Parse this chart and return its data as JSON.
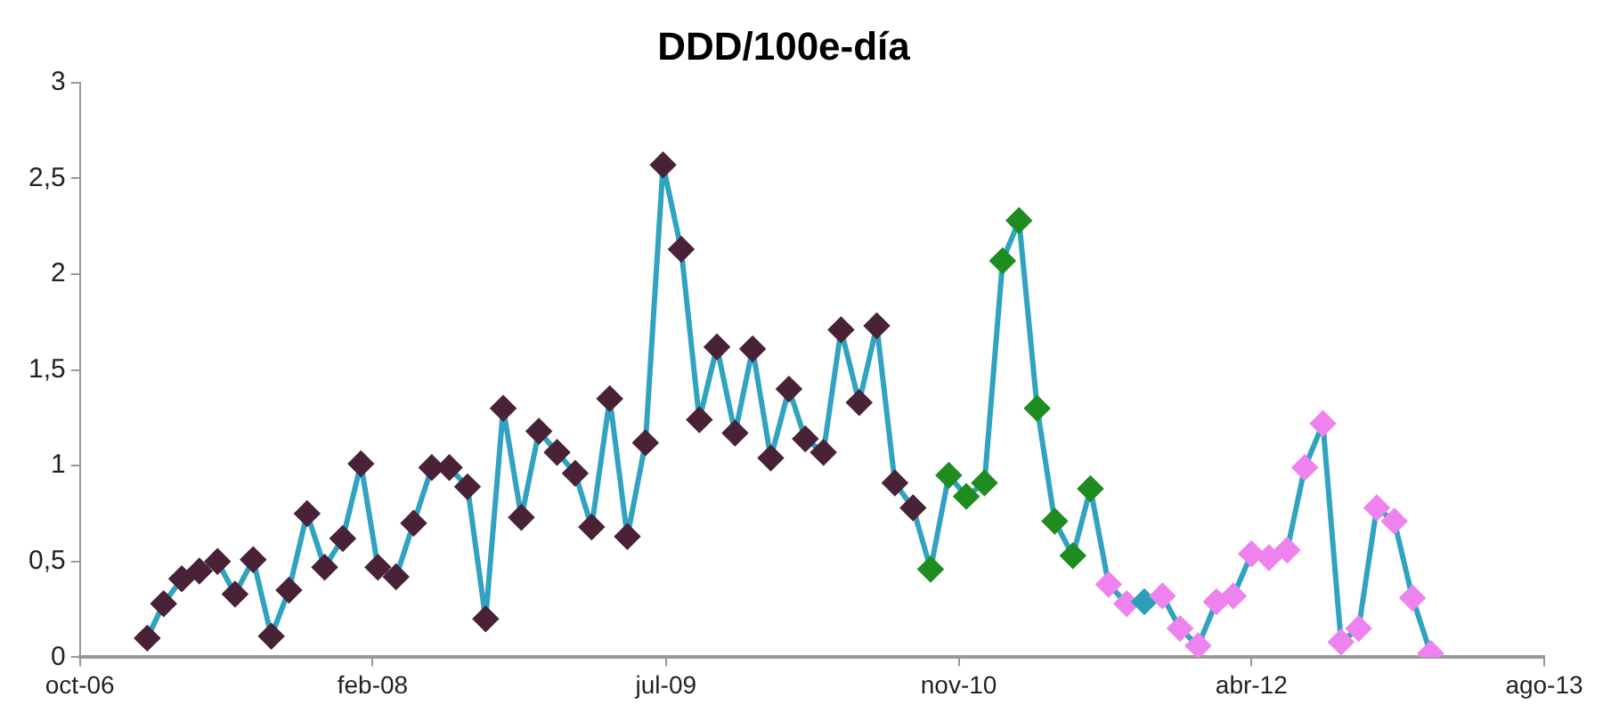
{
  "chart_data": {
    "type": "line",
    "title": "DDD/100e-día",
    "x": [
      "2007-02",
      "2007-03",
      "2007-04",
      "2007-05",
      "2007-06",
      "2007-07",
      "2007-08",
      "2007-09",
      "2007-10",
      "2007-11",
      "2007-12",
      "2008-01",
      "2008-02",
      "2008-03",
      "2008-04",
      "2008-05",
      "2008-06",
      "2008-07",
      "2008-08",
      "2008-09",
      "2008-10",
      "2008-11",
      "2008-12",
      "2009-01",
      "2009-02",
      "2009-03",
      "2009-04",
      "2009-05",
      "2009-06",
      "2009-07",
      "2009-08",
      "2009-09",
      "2009-10",
      "2009-11",
      "2009-12",
      "2010-01",
      "2010-02",
      "2010-03",
      "2010-04",
      "2010-05",
      "2010-06",
      "2010-07",
      "2010-08",
      "2010-09",
      "2010-10",
      "2010-11",
      "2010-12",
      "2011-01",
      "2011-02",
      "2011-03",
      "2011-04",
      "2011-05",
      "2011-06",
      "2011-07",
      "2011-08",
      "2011-09",
      "2011-10",
      "2011-11",
      "2011-12",
      "2012-01",
      "2012-02",
      "2012-03",
      "2012-04",
      "2012-05",
      "2012-06",
      "2012-07",
      "2012-08",
      "2012-09",
      "2012-10",
      "2012-11",
      "2012-12",
      "2013-01",
      "2013-02"
    ],
    "series": [
      {
        "color": "#2fa3c0",
        "values": [
          0.1,
          0.28,
          0.41,
          0.45,
          0.5,
          0.33,
          0.51,
          0.11,
          0.35,
          0.75,
          0.47,
          0.62,
          1.01,
          0.47,
          0.42,
          0.7,
          0.99,
          0.99,
          0.89,
          0.2,
          1.3,
          0.73,
          1.18,
          1.07,
          0.96,
          0.68,
          1.35,
          0.63,
          1.12,
          2.57,
          2.13,
          1.24,
          1.62,
          1.17,
          1.61,
          1.04,
          1.4,
          1.14,
          1.07,
          1.71,
          1.33,
          1.73,
          0.91,
          0.78,
          0.46,
          0.95,
          0.84,
          0.91,
          2.07,
          2.28,
          1.3,
          0.71,
          0.53,
          0.88,
          0.38,
          0.28,
          0.29,
          0.32,
          0.15,
          0.06,
          0.29,
          0.32,
          0.54,
          0.52,
          0.56,
          0.99,
          1.22,
          0.08,
          0.15,
          0.78,
          0.71,
          0.31,
          0.02
        ],
        "colors": [
          "#4a2238",
          "#4a2238",
          "#4a2238",
          "#4a2238",
          "#4a2238",
          "#4a2238",
          "#4a2238",
          "#4a2238",
          "#4a2238",
          "#4a2238",
          "#4a2238",
          "#4a2238",
          "#4a2238",
          "#4a2238",
          "#4a2238",
          "#4a2238",
          "#4a2238",
          "#4a2238",
          "#4a2238",
          "#4a2238",
          "#4a2238",
          "#4a2238",
          "#4a2238",
          "#4a2238",
          "#4a2238",
          "#4a2238",
          "#4a2238",
          "#4a2238",
          "#4a2238",
          "#4a2238",
          "#4a2238",
          "#4a2238",
          "#4a2238",
          "#4a2238",
          "#4a2238",
          "#4a2238",
          "#4a2238",
          "#4a2238",
          "#4a2238",
          "#4a2238",
          "#4a2238",
          "#4a2238",
          "#4a2238",
          "#4a2238",
          "#1e8c1e",
          "#1e8c1e",
          "#1e8c1e",
          "#1e8c1e",
          "#1e8c1e",
          "#1e8c1e",
          "#1e8c1e",
          "#1e8c1e",
          "#1e8c1e",
          "#1e8c1e",
          "#ee82ee",
          "#ee82ee",
          "#2aa0b8",
          "#ee82ee",
          "#ee82ee",
          "#ee82ee",
          "#ee82ee",
          "#ee82ee",
          "#ee82ee",
          "#ee82ee",
          "#ee82ee",
          "#ee82ee",
          "#ee82ee",
          "#ee82ee",
          "#ee82ee",
          "#ee82ee",
          "#ee82ee",
          "#ee82ee",
          "#ee82ee"
        ]
      }
    ],
    "xlim": [
      "2006-10-09",
      "2013-08-14"
    ],
    "xticks": [
      {
        "value": "2006-10-09",
        "label": "oct-06"
      },
      {
        "value": "2008-02-21",
        "label": "feb-08"
      },
      {
        "value": "2009-07-06",
        "label": "jul-09"
      },
      {
        "value": "2010-11-18",
        "label": "nov-10"
      },
      {
        "value": "2012-04-01",
        "label": "abr-12"
      },
      {
        "value": "2013-08-14",
        "label": "ago-13"
      }
    ],
    "ylim": [
      0,
      3
    ],
    "yticks": [
      {
        "value": 0,
        "label": "0"
      },
      {
        "value": 0.5,
        "label": "0,5"
      },
      {
        "value": 1,
        "label": "1"
      },
      {
        "value": 1.5,
        "label": "1,5"
      },
      {
        "value": 2,
        "label": "2"
      },
      {
        "value": 2.5,
        "label": "2,5"
      },
      {
        "value": 3,
        "label": "3"
      }
    ],
    "marker": "diamond",
    "grid": false,
    "legend": false
  }
}
